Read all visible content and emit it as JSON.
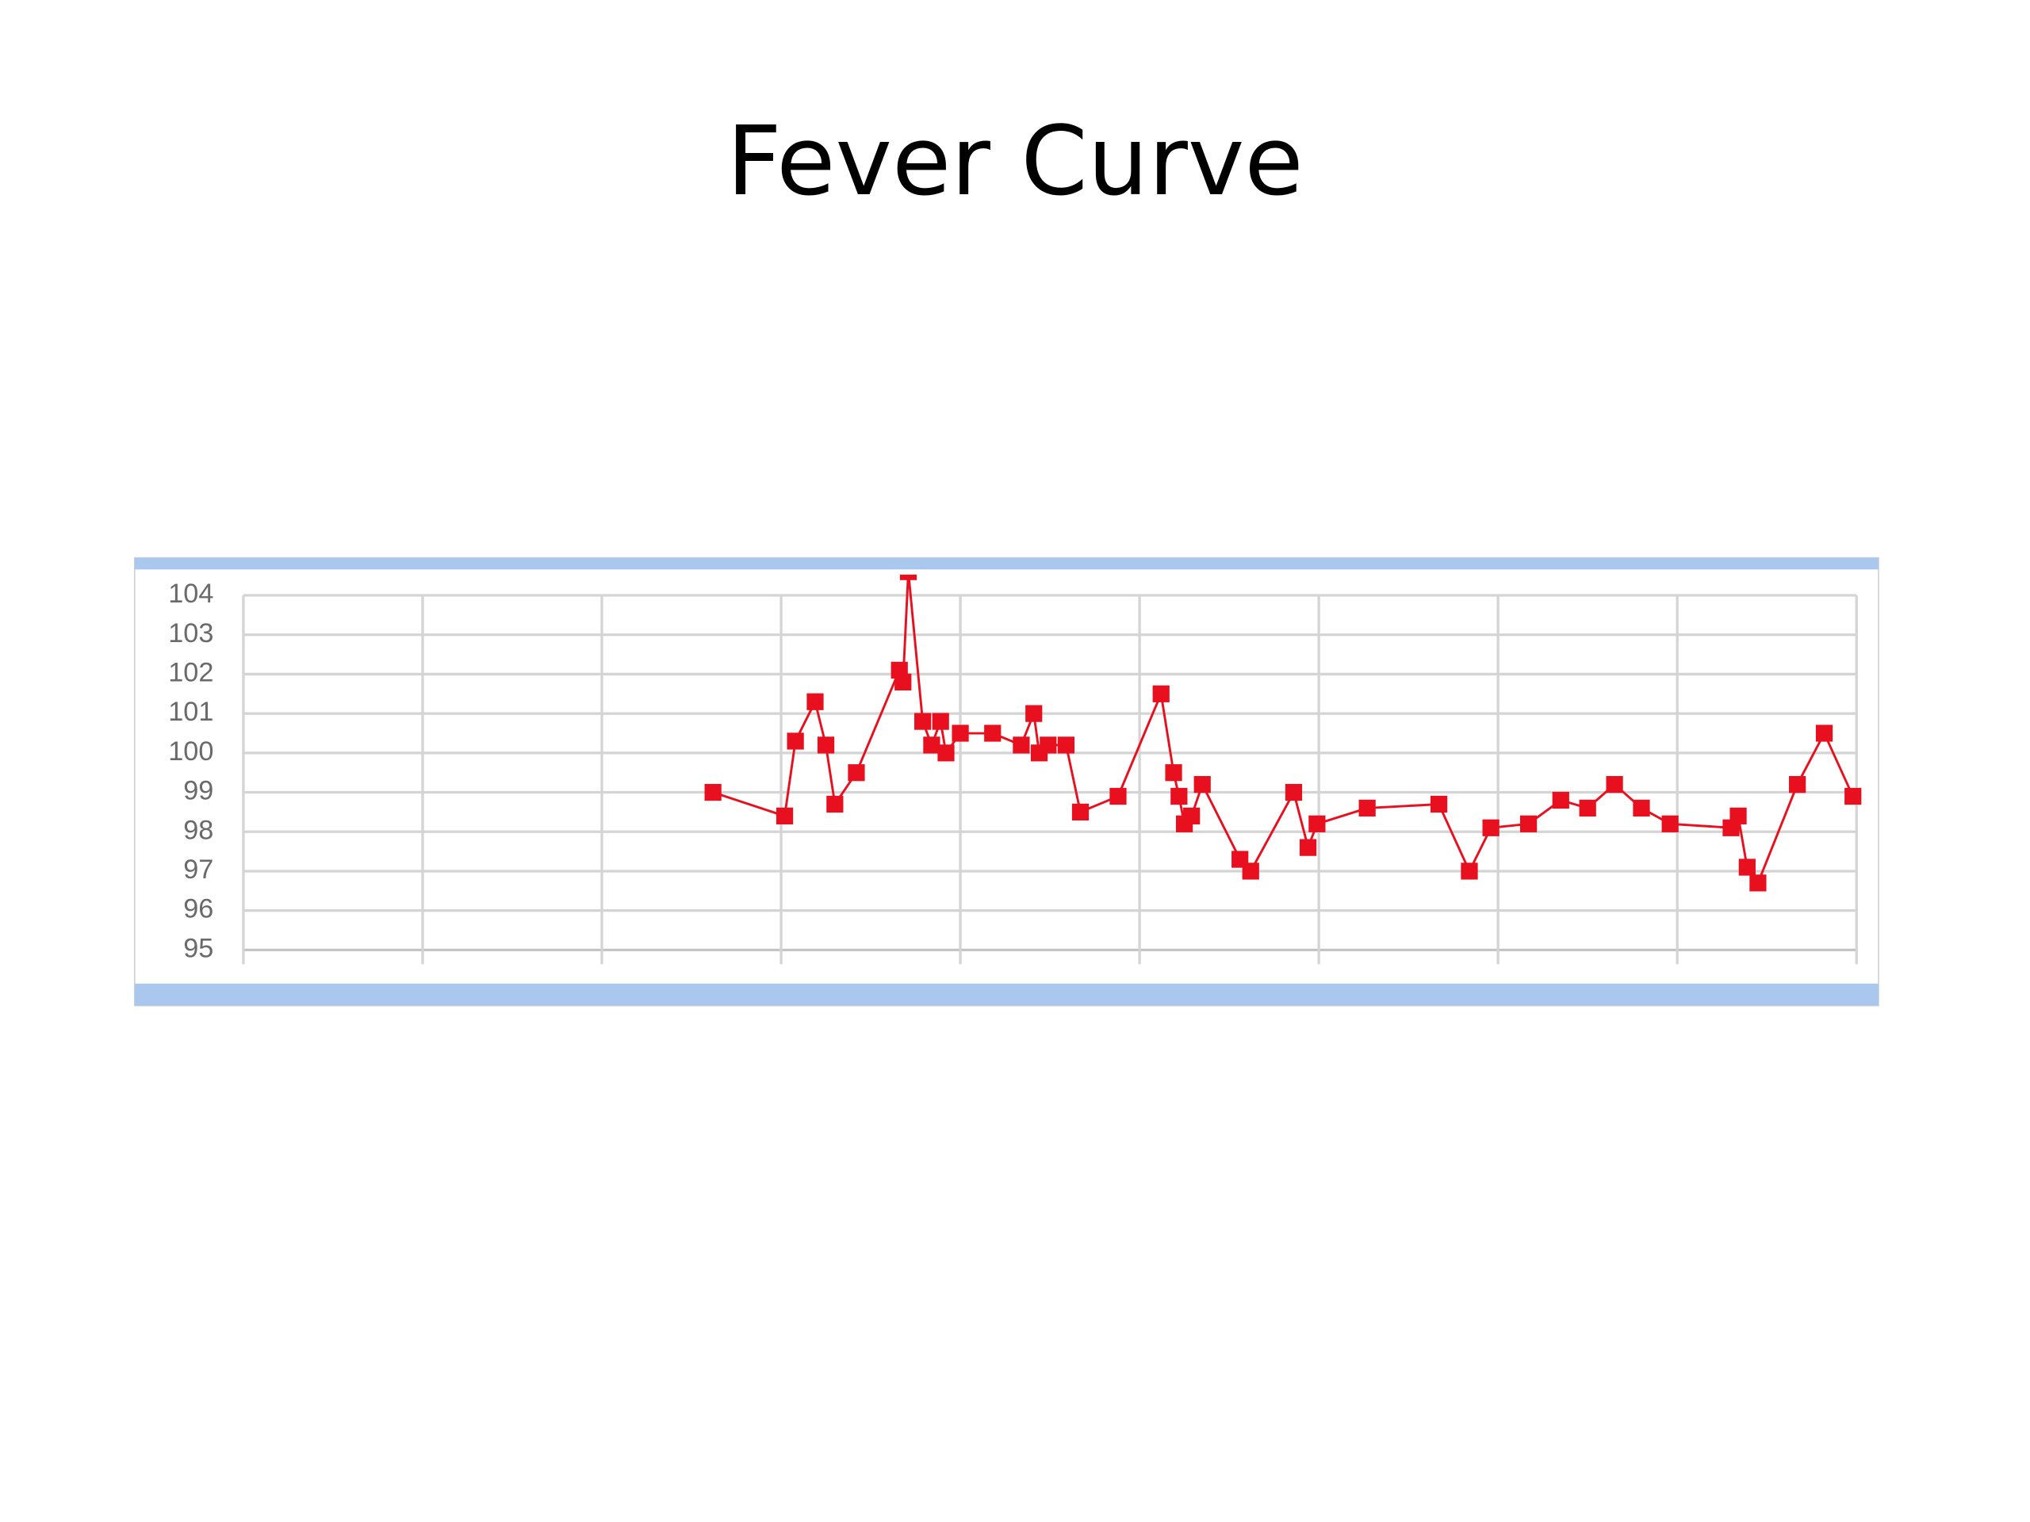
{
  "chart_data": {
    "type": "line",
    "title": "Fever Curve",
    "color": "#e8101e",
    "grid": true,
    "xlim": [
      0,
      9
    ],
    "xticks": [
      0,
      1,
      2,
      3,
      4,
      5,
      6,
      7,
      8,
      9
    ],
    "ylim": [
      95,
      104
    ],
    "yticks": [
      95,
      96,
      97,
      98,
      99,
      100,
      101,
      102,
      103,
      104
    ],
    "x": [
      2.62,
      3.02,
      3.08,
      3.19,
      3.25,
      3.3,
      3.42,
      3.66,
      3.68,
      3.71,
      3.79,
      3.84,
      3.89,
      3.92,
      4.0,
      4.18,
      4.34,
      4.41,
      4.44,
      4.49,
      4.59,
      4.67,
      4.88,
      5.12,
      5.19,
      5.22,
      5.25,
      5.29,
      5.35,
      5.56,
      5.62,
      5.86,
      5.94,
      5.99,
      6.27,
      6.67,
      6.84,
      6.96,
      7.17,
      7.35,
      7.5,
      7.65,
      7.8,
      7.96,
      8.3,
      8.34,
      8.39,
      8.45,
      8.67,
      8.82,
      8.98
    ],
    "values": [
      99.0,
      98.4,
      100.3,
      101.3,
      100.2,
      98.7,
      99.5,
      102.1,
      101.8,
      104.6,
      100.8,
      100.2,
      100.8,
      100.0,
      100.5,
      100.5,
      100.2,
      101.0,
      100.0,
      100.2,
      100.2,
      98.5,
      98.9,
      101.5,
      99.5,
      98.9,
      98.2,
      98.4,
      99.2,
      97.3,
      97.0,
      99.0,
      97.6,
      98.2,
      98.6,
      98.7,
      97.0,
      98.1,
      98.2,
      98.8,
      98.6,
      99.2,
      98.6,
      98.2,
      98.1,
      98.4,
      97.1,
      96.7,
      99.2,
      100.5,
      98.9
    ]
  }
}
